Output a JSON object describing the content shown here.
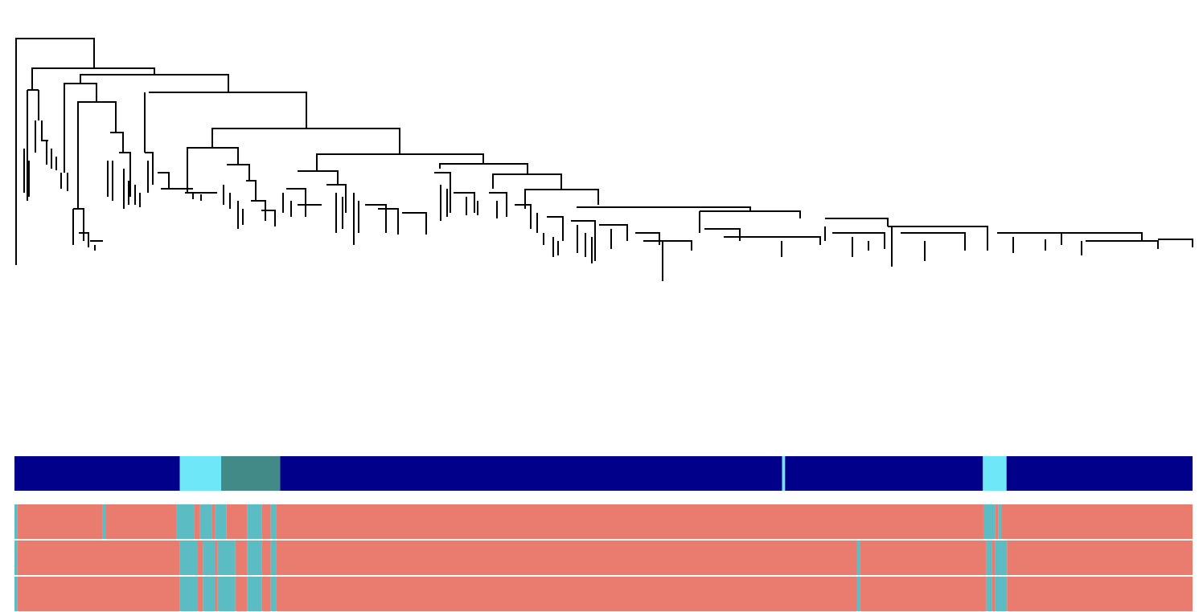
{
  "chart_data": {
    "type": "dendrogram-annotation",
    "tracks": [
      {
        "colors": [
          "#00008b",
          "#6ee8f8",
          "#418a88",
          "#00008b",
          "#6ee8f8",
          "#00008b",
          "#6ee8f8",
          "#00008b"
        ],
        "counts": [
          56,
          14,
          20,
          170,
          1,
          67,
          8,
          63
        ]
      },
      {
        "colors": [
          "#5bbdc3",
          "#e97c6f",
          "#5bbdc3",
          "#e97c6f",
          "#5bbdc3",
          "#e97c6f",
          "#5bbdc3",
          "#e97c6f",
          "#5bbdc3",
          "#e97c6f",
          "#5bbdc3",
          "#e97c6f",
          "#5bbdc3",
          "#e97c6f",
          "#5bbdc3",
          "#e97c6f",
          "#5bbdc3",
          "#e97c6f"
        ],
        "counts": [
          1,
          29,
          1,
          24,
          6,
          2,
          4,
          1,
          4,
          7,
          5,
          3,
          2,
          240,
          4,
          1,
          1,
          65
        ]
      },
      {
        "colors": [
          "#5bbdc3",
          "#e97c6f",
          "#5bbdc3",
          "#e97c6f",
          "#5bbdc3",
          "#e97c6f",
          "#5bbdc3",
          "#e97c6f",
          "#5bbdc3",
          "#e97c6f",
          "#5bbdc3",
          "#e97c6f",
          "#5bbdc3",
          "#e97c6f",
          "#5bbdc3",
          "#e97c6f",
          "#5bbdc3",
          "#e97c6f"
        ],
        "counts": [
          1,
          55,
          6,
          2,
          4,
          1,
          6,
          4,
          5,
          3,
          2,
          197,
          1,
          43,
          2,
          1,
          4,
          63
        ]
      },
      {
        "colors": [
          "#5bbdc3",
          "#e97c6f",
          "#5bbdc3",
          "#e97c6f",
          "#5bbdc3",
          "#e97c6f",
          "#5bbdc3",
          "#e97c6f",
          "#5bbdc3",
          "#e97c6f",
          "#5bbdc3",
          "#e97c6f",
          "#5bbdc3",
          "#e97c6f",
          "#5bbdc3",
          "#e97c6f",
          "#5bbdc3",
          "#e97c6f"
        ],
        "counts": [
          1,
          55,
          6,
          2,
          4,
          1,
          6,
          4,
          5,
          3,
          2,
          197,
          1,
          43,
          2,
          1,
          4,
          63
        ]
      }
    ]
  }
}
